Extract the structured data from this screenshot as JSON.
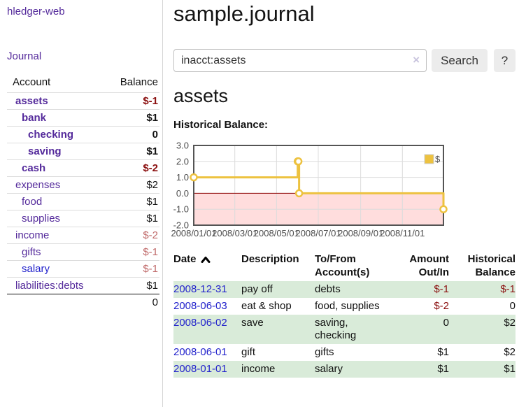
{
  "app": {
    "title": "hledger-web"
  },
  "sidebar": {
    "journal_link": "Journal",
    "accounts_table": {
      "headers": {
        "account": "Account",
        "balance": "Balance"
      },
      "rows": [
        {
          "name": "assets",
          "indent": 0,
          "bold": true,
          "balance": "$-1",
          "balance_style": "neg"
        },
        {
          "name": "bank",
          "indent": 1,
          "bold": true,
          "balance": "$1",
          "balance_style": "pos"
        },
        {
          "name": "checking",
          "indent": 2,
          "bold": true,
          "balance": "0",
          "balance_style": "pos"
        },
        {
          "name": "saving",
          "indent": 2,
          "bold": true,
          "balance": "$1",
          "balance_style": "pos"
        },
        {
          "name": "cash",
          "indent": 1,
          "bold": true,
          "balance": "$-2",
          "balance_style": "neg"
        },
        {
          "name": "expenses",
          "indent": 0,
          "bold": false,
          "balance": "$2",
          "balance_style": "pos"
        },
        {
          "name": "food",
          "indent": 1,
          "bold": false,
          "balance": "$1",
          "balance_style": "pos"
        },
        {
          "name": "supplies",
          "indent": 1,
          "bold": false,
          "balance": "$1",
          "balance_style": "pos"
        },
        {
          "name": "income",
          "indent": 0,
          "bold": false,
          "balance": "$-2",
          "balance_style": "neg-muted"
        },
        {
          "name": "gifts",
          "indent": 1,
          "bold": false,
          "balance": "$-1",
          "balance_style": "neg-muted"
        },
        {
          "name": "salary",
          "indent": 1,
          "bold": false,
          "balance": "$-1",
          "balance_style": "neg-muted",
          "link_style": "unvisited"
        },
        {
          "name": "liabilities:debts",
          "indent": 0,
          "bold": false,
          "balance": "$1",
          "balance_style": "pos"
        }
      ],
      "total": "0"
    }
  },
  "main": {
    "title": "sample.journal",
    "search": {
      "value": "inacct:assets",
      "button_label": "Search",
      "help_label": "?"
    },
    "account_heading": "assets",
    "chart_label": "Historical Balance:"
  },
  "icons": {
    "clear_search": "×",
    "sort": "chevron-up"
  },
  "chart_data": {
    "type": "line",
    "step": true,
    "title": "Historical Balance",
    "legend": "$",
    "legend_position": "top-right",
    "grid": true,
    "series": [
      {
        "name": "$",
        "points": [
          [
            "2008-01-01",
            1
          ],
          [
            "2008-06-01",
            2
          ],
          [
            "2008-06-02",
            2
          ],
          [
            "2008-06-03",
            0
          ],
          [
            "2008-12-31",
            -1
          ]
        ]
      }
    ],
    "xlim": [
      "2008-01-01",
      "2008-12-31"
    ],
    "ylim": [
      -2,
      3
    ],
    "y_ticks": [
      3,
      2,
      1,
      0,
      -1,
      -2
    ],
    "x_ticks": [
      "2008/01/01",
      "2008/03/01",
      "2008/05/01",
      "2008/07/01",
      "2008/09/01",
      "2008/11/01"
    ],
    "negative_region_highlighted": true
  },
  "register": {
    "headers": {
      "date": "Date",
      "description": "Description",
      "account": "To/From Account(s)",
      "amount": "Amount Out/In",
      "balance": "Historical Balance"
    },
    "rows": [
      {
        "date": "2008-12-31",
        "description": "pay off",
        "accounts": "debts",
        "amount": "$-1",
        "amount_neg": true,
        "balance": "$-1",
        "balance_neg": true
      },
      {
        "date": "2008-06-03",
        "description": "eat & shop",
        "accounts": "food, supplies",
        "amount": "$-2",
        "amount_neg": true,
        "balance": "0",
        "balance_neg": false
      },
      {
        "date": "2008-06-02",
        "description": "save",
        "accounts": "saving, checking",
        "amount": "0",
        "amount_neg": false,
        "balance": "$2",
        "balance_neg": false
      },
      {
        "date": "2008-06-01",
        "description": "gift",
        "accounts": "gifts",
        "amount": "$1",
        "amount_neg": false,
        "balance": "$2",
        "balance_neg": false
      },
      {
        "date": "2008-01-01",
        "description": "income",
        "accounts": "salary",
        "amount": "$1",
        "amount_neg": false,
        "balance": "$1",
        "balance_neg": false
      }
    ]
  },
  "colors": {
    "link_purple": "#542a9b",
    "link_blue": "#2323cc",
    "negative_red": "#8b1010",
    "negative_muted": "#c06a6a",
    "row_green": "#d9ebd9",
    "button_gray": "#ececec",
    "chart_line_yellow": "#edc240",
    "chart_negative_pink": "#ffdddd",
    "chart_zero_line": "#8b0000",
    "chart_border": "#545454",
    "chart_grid": "#dcdcdc"
  }
}
